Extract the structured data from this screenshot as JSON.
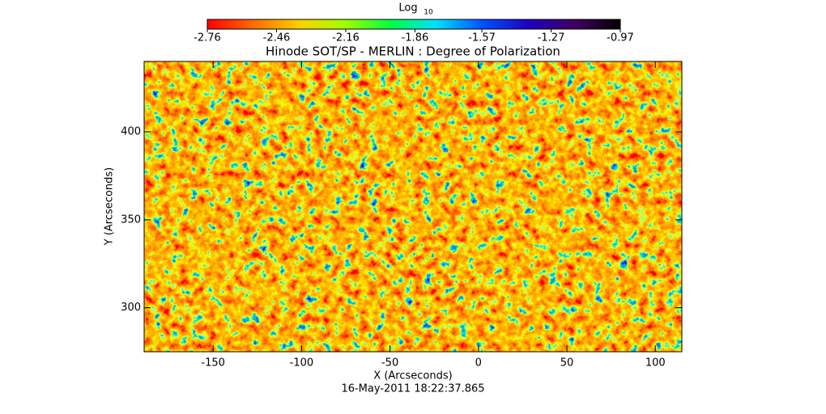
{
  "chart_data": {
    "type": "image",
    "title": "Hinode SOT/SP - MERLIN : Degree of Polarization",
    "subtitle": "16-May-2011 18:22:37.865",
    "x_label": "X (Arcseconds)",
    "y_label": "Y (Arcseconds)",
    "xlim": [
      -189,
      115
    ],
    "xticks": [
      -150,
      -100,
      -50,
      0,
      50,
      100
    ],
    "ylim": [
      275,
      440
    ],
    "yticks": [
      300,
      350,
      400
    ],
    "colorbar": {
      "label": "Log",
      "label_subscript": "10",
      "lim": [
        -2.76,
        -0.97
      ],
      "ticks": [
        -2.76,
        -2.46,
        -2.16,
        -1.86,
        -1.57,
        -1.27,
        -0.97
      ],
      "colors": [
        "#ff0000",
        "#ff6a00",
        "#ffd000",
        "#a0ff00",
        "#00ff40",
        "#00e0ff",
        "#0050ff",
        "#2000c0",
        "#400060",
        "#000000"
      ]
    }
  }
}
